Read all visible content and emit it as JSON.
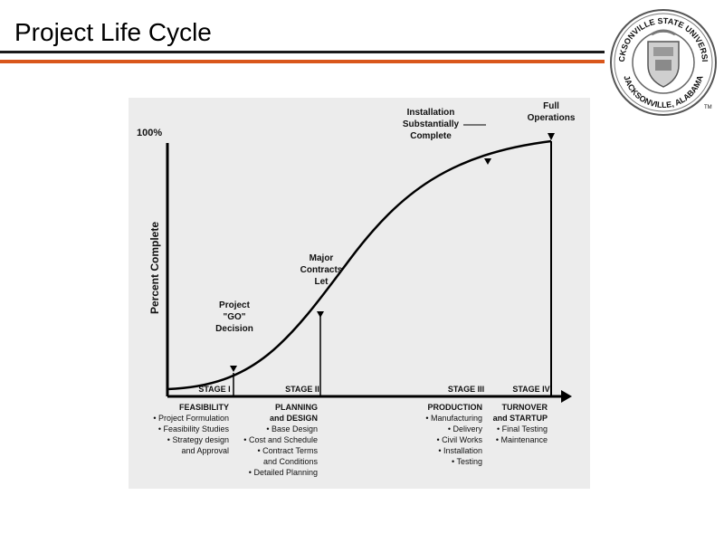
{
  "slide": {
    "title": "Project Life Cycle"
  },
  "logo": {
    "text_top": "JACKSONVILLE STATE UNIVERSITY",
    "text_bottom": "JACKSONVILLE, ALABAMA",
    "mark": "TM"
  },
  "colors": {
    "accent_orange": "#d9571c",
    "rule_black": "#1a1a1a",
    "panel_bg": "#ececec"
  },
  "diagram": {
    "y_axis_label": "Percent Complete",
    "y_top_label": "100%",
    "annotations": {
      "project_go": [
        "Project",
        "\"GO\"",
        "Decision"
      ],
      "major_contracts": [
        "Major",
        "Contracts",
        "Let"
      ],
      "installation": [
        "Installation",
        "Substantially",
        "Complete"
      ],
      "full_operations": [
        "Full",
        "Operations"
      ]
    },
    "stages": [
      {
        "label": "STAGE I",
        "title": [
          "FEASIBILITY"
        ],
        "items": [
          "• Project Formulation",
          "• Feasibility Studies",
          "• Strategy design",
          "and Approval"
        ]
      },
      {
        "label": "STAGE II",
        "title": [
          "PLANNING",
          "and DESIGN"
        ],
        "items": [
          "• Base Design",
          "• Cost and Schedule",
          "• Contract Terms",
          "and Conditions",
          "• Detailed Planning"
        ]
      },
      {
        "label": "STAGE III",
        "title": [
          "PRODUCTION"
        ],
        "items": [
          "• Manufacturing",
          "• Delivery",
          "• Civil Works",
          "• Installation",
          "• Testing"
        ]
      },
      {
        "label": "STAGE IV",
        "title": [
          "TURNOVER",
          "and STARTUP"
        ],
        "items": [
          "• Final Testing",
          "• Maintenance"
        ]
      }
    ]
  }
}
